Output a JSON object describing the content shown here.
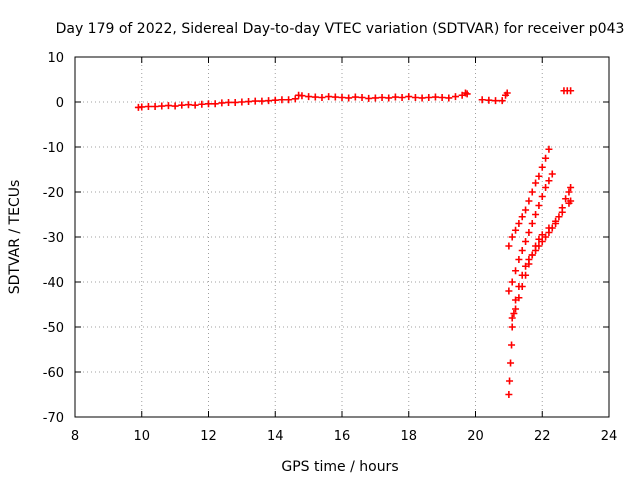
{
  "chart_data": {
    "type": "scatter",
    "title": "Day 179 of 2022, Sidereal Day-to-day VTEC variation (SDTVAR) for receiver p043",
    "xlabel": "GPS time / hours",
    "ylabel": "SDTVAR / TECUs",
    "xlim": [
      8,
      24
    ],
    "ylim": [
      -70,
      10
    ],
    "xticks": [
      "8",
      "10",
      "12",
      "14",
      "16",
      "18",
      "20",
      "22",
      "24"
    ],
    "yticks": [
      "10",
      "0",
      "-10",
      "-20",
      "-30",
      "-40",
      "-50",
      "-60",
      "-70"
    ],
    "grid": true,
    "marker": "plus",
    "color": "#ff0000",
    "series": [
      {
        "points": [
          [
            9.9,
            -1.2
          ],
          [
            10.0,
            -1.1
          ],
          [
            10.2,
            -1.0
          ],
          [
            10.4,
            -1.0
          ],
          [
            10.6,
            -0.9
          ],
          [
            10.8,
            -0.8
          ],
          [
            11.0,
            -0.9
          ],
          [
            11.2,
            -0.7
          ],
          [
            11.4,
            -0.6
          ],
          [
            11.6,
            -0.7
          ],
          [
            11.8,
            -0.5
          ],
          [
            12.0,
            -0.4
          ],
          [
            12.2,
            -0.4
          ],
          [
            12.4,
            -0.2
          ],
          [
            12.6,
            -0.1
          ],
          [
            12.8,
            -0.1
          ],
          [
            13.0,
            0.0
          ],
          [
            13.2,
            0.1
          ],
          [
            13.4,
            0.2
          ],
          [
            13.6,
            0.2
          ],
          [
            13.8,
            0.3
          ],
          [
            14.0,
            0.4
          ],
          [
            14.2,
            0.5
          ],
          [
            14.4,
            0.5
          ],
          [
            14.6,
            0.7
          ],
          [
            14.7,
            1.5
          ],
          [
            14.8,
            1.4
          ],
          [
            15.0,
            1.2
          ],
          [
            15.2,
            1.1
          ],
          [
            15.4,
            1.0
          ],
          [
            15.6,
            1.2
          ],
          [
            15.8,
            1.1
          ],
          [
            16.0,
            1.0
          ],
          [
            16.2,
            0.9
          ],
          [
            16.4,
            1.1
          ],
          [
            16.6,
            1.0
          ],
          [
            16.8,
            0.8
          ],
          [
            17.0,
            0.9
          ],
          [
            17.2,
            1.0
          ],
          [
            17.4,
            0.9
          ],
          [
            17.6,
            1.1
          ],
          [
            17.8,
            1.0
          ],
          [
            18.0,
            1.2
          ],
          [
            18.2,
            1.0
          ],
          [
            18.4,
            0.9
          ],
          [
            18.6,
            1.0
          ],
          [
            18.8,
            1.1
          ],
          [
            19.0,
            1.0
          ],
          [
            19.2,
            0.9
          ],
          [
            19.4,
            1.2
          ],
          [
            19.6,
            1.5
          ],
          [
            19.7,
            2.0
          ],
          [
            19.75,
            1.8
          ],
          [
            20.2,
            0.5
          ],
          [
            20.4,
            0.4
          ],
          [
            20.6,
            0.3
          ],
          [
            20.8,
            0.3
          ],
          [
            20.9,
            1.5
          ],
          [
            20.95,
            2.0
          ],
          [
            22.65,
            2.5
          ],
          [
            22.75,
            2.5
          ],
          [
            22.85,
            2.5
          ],
          [
            21.0,
            -32.0
          ],
          [
            21.1,
            -30.0
          ],
          [
            21.2,
            -28.5
          ],
          [
            21.3,
            -27.0
          ],
          [
            21.4,
            -25.5
          ],
          [
            21.5,
            -24.0
          ],
          [
            21.6,
            -22.0
          ],
          [
            21.7,
            -20.0
          ],
          [
            21.8,
            -18.0
          ],
          [
            21.9,
            -16.5
          ],
          [
            22.0,
            -14.5
          ],
          [
            22.1,
            -12.5
          ],
          [
            22.2,
            -10.5
          ],
          [
            21.0,
            -42.0
          ],
          [
            21.1,
            -40.0
          ],
          [
            21.2,
            -37.5
          ],
          [
            21.3,
            -35.0
          ],
          [
            21.4,
            -33.0
          ],
          [
            21.5,
            -31.0
          ],
          [
            21.6,
            -29.0
          ],
          [
            21.7,
            -27.0
          ],
          [
            21.8,
            -25.0
          ],
          [
            21.9,
            -23.0
          ],
          [
            22.0,
            -21.0
          ],
          [
            22.1,
            -19.0
          ],
          [
            22.2,
            -17.5
          ],
          [
            22.3,
            -16.0
          ],
          [
            21.0,
            -65.0
          ],
          [
            21.02,
            -62.0
          ],
          [
            21.05,
            -58.0
          ],
          [
            21.08,
            -54.0
          ],
          [
            21.1,
            -50.0
          ],
          [
            21.15,
            -47.0
          ],
          [
            21.2,
            -44.0
          ],
          [
            21.3,
            -41.0
          ],
          [
            21.4,
            -38.5
          ],
          [
            21.5,
            -36.5
          ],
          [
            21.6,
            -35.0
          ],
          [
            21.7,
            -34.0
          ],
          [
            21.8,
            -33.0
          ],
          [
            21.9,
            -32.0
          ],
          [
            22.0,
            -31.0
          ],
          [
            22.1,
            -30.0
          ],
          [
            22.2,
            -29.0
          ],
          [
            22.3,
            -28.0
          ],
          [
            22.4,
            -27.0
          ],
          [
            22.5,
            -25.5
          ],
          [
            22.6,
            -23.5
          ],
          [
            22.7,
            -21.5
          ],
          [
            22.8,
            -20.0
          ],
          [
            22.85,
            -19.0
          ],
          [
            21.1,
            -48.0
          ],
          [
            21.2,
            -46.0
          ],
          [
            21.3,
            -43.5
          ],
          [
            21.4,
            -41.0
          ],
          [
            21.5,
            -38.5
          ],
          [
            21.6,
            -36.0
          ],
          [
            21.7,
            -34.0
          ],
          [
            21.8,
            -32.0
          ],
          [
            21.9,
            -30.5
          ],
          [
            22.0,
            -29.5
          ],
          [
            22.2,
            -28.0
          ],
          [
            22.4,
            -26.5
          ],
          [
            22.6,
            -24.5
          ],
          [
            22.8,
            -22.5
          ],
          [
            22.85,
            -22.0
          ]
        ]
      }
    ]
  }
}
